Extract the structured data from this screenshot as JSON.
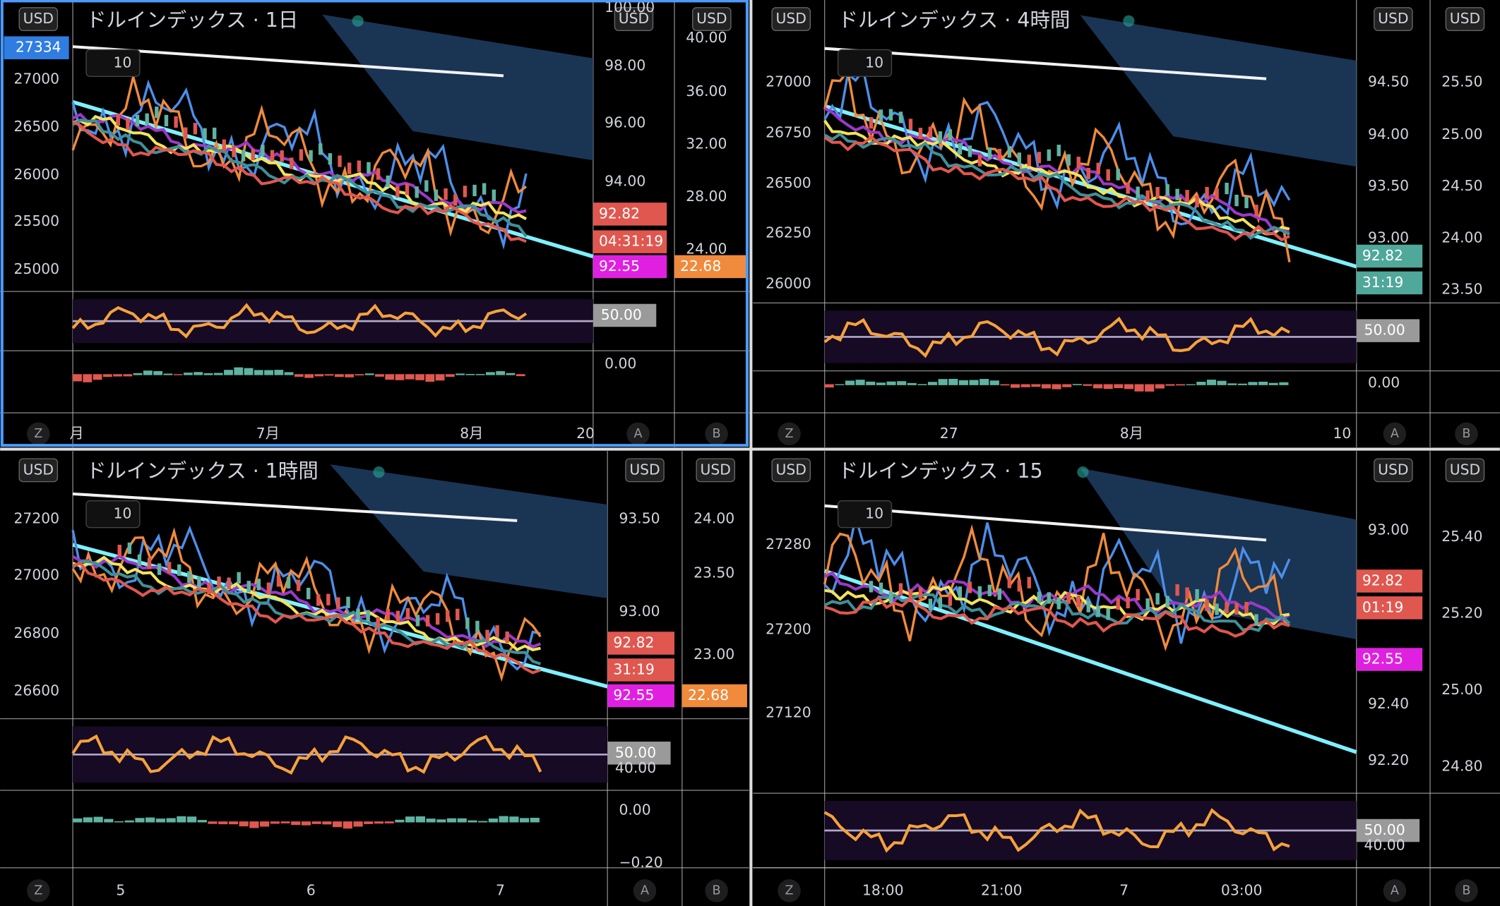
{
  "buttons": [
    "Z",
    "A",
    "B"
  ],
  "panels": [
    {
      "title": "ドルインデックス · 1日",
      "currency": "USD",
      "interval": "10",
      "price_tag": "27334",
      "price_axis": [
        "27000",
        "26500",
        "26000",
        "25500",
        "25000"
      ],
      "axis2": [
        "100.00",
        "98.00",
        "96.00",
        "94.00"
      ],
      "tags2": [
        "92.82",
        "04:31:19",
        "92.55"
      ],
      "axis3": [
        "40.00",
        "36.00",
        "32.00",
        "28.00",
        "24.00"
      ],
      "tags3": [
        "22.68"
      ],
      "rsi_axis": [
        "50.00"
      ],
      "macd_axis": [
        "0.00"
      ],
      "time_axis": [
        "月",
        "7月",
        "8月",
        "20"
      ]
    },
    {
      "title": "ドルインデックス · 4時間",
      "currency": "USD",
      "interval": "10",
      "price_axis": [
        "27000",
        "26750",
        "26500",
        "26250",
        "26000"
      ],
      "axis2": [
        "94.50",
        "94.00",
        "93.50",
        "93.00"
      ],
      "tags2": [
        "92.82",
        "31:19"
      ],
      "axis3": [
        "25.50",
        "25.00",
        "24.50",
        "24.00",
        "23.50"
      ],
      "tags3": [],
      "rsi_axis": [
        "50.00"
      ],
      "macd_axis": [
        "0.00"
      ],
      "time_axis": [
        "27",
        "8月",
        "10"
      ]
    },
    {
      "title": "ドルインデックス · 1時間",
      "currency": "USD",
      "interval": "10",
      "price_axis": [
        "27200",
        "27000",
        "26800",
        "26600"
      ],
      "axis2": [
        "93.50",
        "93.00"
      ],
      "tags2": [
        "92.82",
        "31:19",
        "92.55"
      ],
      "axis3": [
        "24.00",
        "23.50",
        "23.00"
      ],
      "tags3": [
        "22.68"
      ],
      "rsi_axis": [
        "50.00",
        "40.00"
      ],
      "macd_axis": [
        "0.00",
        "−0.20"
      ],
      "time_axis": [
        "5",
        "6",
        "7"
      ]
    },
    {
      "title": "ドルインデックス · 15",
      "currency": "USD",
      "interval": "10",
      "price_axis": [
        "27280",
        "27200",
        "27120"
      ],
      "axis2": [
        "93.00",
        "92.40",
        "92.20"
      ],
      "tags2": [
        "92.82",
        "01:19",
        "92.55"
      ],
      "axis3": [
        "25.40",
        "25.20",
        "25.00",
        "24.80"
      ],
      "tags3": [],
      "rsi_axis": [
        "50.00",
        "40.00"
      ],
      "macd_axis": [],
      "time_axis": [
        "18:00",
        "21:00",
        "7",
        "03:00"
      ]
    }
  ]
}
